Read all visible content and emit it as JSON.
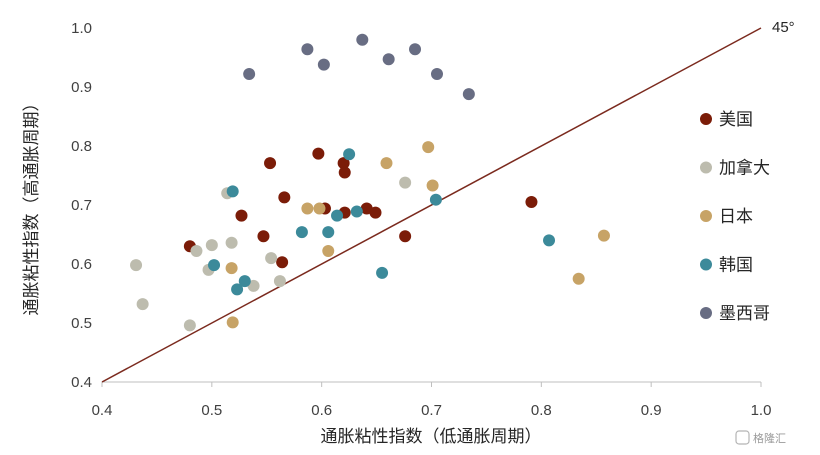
{
  "chart_data": {
    "type": "scatter",
    "title": "",
    "xlabel": "通胀粘性指数（低通胀周期）",
    "ylabel": "通胀粘性指数（高通胀周期）",
    "xlim": [
      0.4,
      1.0
    ],
    "ylim": [
      0.4,
      1.0
    ],
    "x_ticks": [
      "0.4",
      "0.5",
      "0.6",
      "0.7",
      "0.8",
      "0.9",
      "1.0"
    ],
    "y_ticks": [
      "0.4",
      "0.5",
      "0.6",
      "0.7",
      "0.8",
      "0.9",
      "1.0"
    ],
    "reference_line": {
      "label": "45°",
      "from": [
        0.4,
        0.4
      ],
      "to": [
        1.0,
        1.0
      ],
      "color": "#7b2a1e"
    },
    "grid": false,
    "legend_position": "right",
    "series": [
      {
        "name": "美国",
        "color": "#7b1c08",
        "points": [
          [
            0.48,
            0.63
          ],
          [
            0.527,
            0.682
          ],
          [
            0.547,
            0.647
          ],
          [
            0.553,
            0.771
          ],
          [
            0.564,
            0.603
          ],
          [
            0.566,
            0.713
          ],
          [
            0.597,
            0.787
          ],
          [
            0.603,
            0.694
          ],
          [
            0.62,
            0.771
          ],
          [
            0.621,
            0.755
          ],
          [
            0.621,
            0.687
          ],
          [
            0.641,
            0.694
          ],
          [
            0.649,
            0.687
          ],
          [
            0.676,
            0.647
          ],
          [
            0.791,
            0.705
          ]
        ]
      },
      {
        "name": "加拿大",
        "color": "#bdbcae",
        "points": [
          [
            0.431,
            0.598
          ],
          [
            0.437,
            0.532
          ],
          [
            0.48,
            0.496
          ],
          [
            0.486,
            0.622
          ],
          [
            0.497,
            0.59
          ],
          [
            0.5,
            0.632
          ],
          [
            0.514,
            0.72
          ],
          [
            0.518,
            0.636
          ],
          [
            0.538,
            0.563
          ],
          [
            0.554,
            0.61
          ],
          [
            0.562,
            0.571
          ],
          [
            0.676,
            0.738
          ]
        ]
      },
      {
        "name": "日本",
        "color": "#c7a366",
        "points": [
          [
            0.518,
            0.593
          ],
          [
            0.519,
            0.501
          ],
          [
            0.587,
            0.694
          ],
          [
            0.598,
            0.694
          ],
          [
            0.606,
            0.622
          ],
          [
            0.659,
            0.771
          ],
          [
            0.697,
            0.798
          ],
          [
            0.701,
            0.733
          ],
          [
            0.834,
            0.575
          ],
          [
            0.857,
            0.648
          ]
        ]
      },
      {
        "name": "韩国",
        "color": "#3c8a9a",
        "points": [
          [
            0.502,
            0.598
          ],
          [
            0.519,
            0.723
          ],
          [
            0.523,
            0.557
          ],
          [
            0.53,
            0.571
          ],
          [
            0.582,
            0.654
          ],
          [
            0.606,
            0.654
          ],
          [
            0.614,
            0.682
          ],
          [
            0.625,
            0.786
          ],
          [
            0.632,
            0.689
          ],
          [
            0.655,
            0.585
          ],
          [
            0.704,
            0.709
          ],
          [
            0.807,
            0.64
          ]
        ]
      },
      {
        "name": "墨西哥",
        "color": "#686d83",
        "points": [
          [
            0.534,
            0.922
          ],
          [
            0.587,
            0.964
          ],
          [
            0.602,
            0.938
          ],
          [
            0.637,
            0.98
          ],
          [
            0.661,
            0.947
          ],
          [
            0.685,
            0.964
          ],
          [
            0.705,
            0.922
          ],
          [
            0.734,
            0.888
          ]
        ]
      }
    ]
  },
  "watermark": {
    "text": "格隆汇"
  }
}
